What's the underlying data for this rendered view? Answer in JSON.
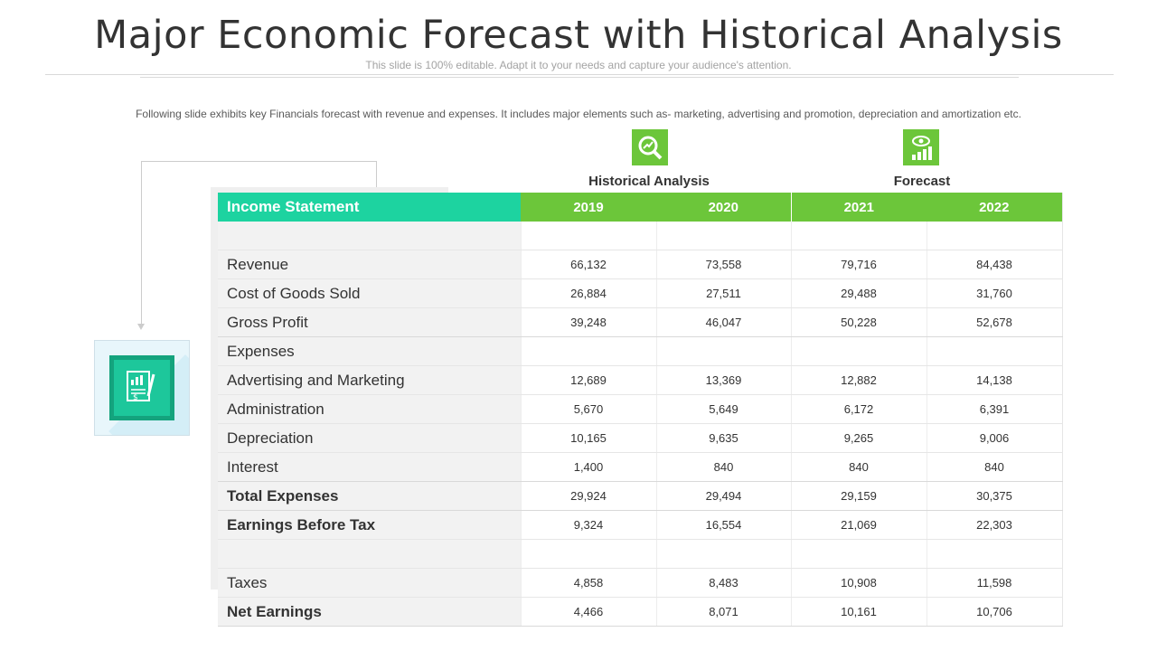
{
  "slide": {
    "title": "Major Economic Forecast with Historical Analysis",
    "subtitle": "This slide is 100% editable. Adapt it to your needs and capture your audience's attention.",
    "description": "Following slide exhibits key Financials forecast with revenue  and expenses. It includes major elements such as- marketing, advertising  and promotion, depreciation and amortization etc."
  },
  "icons": {
    "historical": "magnify-chart-icon",
    "forecast": "eye-chart-icon",
    "document": "financial-document-icon"
  },
  "colors": {
    "label_header": "#1dd3a0",
    "year_header": "#6cc63a",
    "icon_green": "#6cc63a",
    "doc_teal": "#1dc79b"
  },
  "groups": {
    "historical": "Historical Analysis",
    "forecast": "Forecast"
  },
  "table": {
    "header_label": "Income Statement",
    "years": [
      "2019",
      "2020",
      "2021",
      "2022"
    ],
    "rows": [
      {
        "label": "",
        "values": [
          "",
          "",
          "",
          ""
        ]
      },
      {
        "label": "Revenue",
        "values": [
          "66,132",
          "73,558",
          "79,716",
          "84,438"
        ]
      },
      {
        "label": "Cost of Goods Sold",
        "values": [
          "26,884",
          "27,511",
          "29,488",
          "31,760"
        ]
      },
      {
        "label": "Gross Profit",
        "values": [
          "39,248",
          "46,047",
          "50,228",
          "52,678"
        ]
      },
      {
        "label": "Expenses",
        "values": [
          "",
          "",
          "",
          ""
        ]
      },
      {
        "label": "Advertising and Marketing",
        "values": [
          "12,689",
          "13,369",
          "12,882",
          "14,138"
        ]
      },
      {
        "label": "Administration",
        "values": [
          "5,670",
          "5,649",
          "6,172",
          "6,391"
        ]
      },
      {
        "label": "Depreciation",
        "values": [
          "10,165",
          "9,635",
          "9,265",
          "9,006"
        ]
      },
      {
        "label": "Interest",
        "values": [
          "1,400",
          "840",
          "840",
          "840"
        ]
      },
      {
        "label": "Total Expenses",
        "values": [
          "29,924",
          "29,494",
          "29,159",
          "30,375"
        ]
      },
      {
        "label": "Earnings Before Tax",
        "values": [
          "9,324",
          "16,554",
          "21,069",
          "22,303"
        ]
      },
      {
        "label": "",
        "values": [
          "",
          "",
          "",
          ""
        ]
      },
      {
        "label": "Taxes",
        "values": [
          "4,858",
          "8,483",
          "10,908",
          "11,598"
        ]
      },
      {
        "label": "Net Earnings",
        "values": [
          "4,466",
          "8,071",
          "10,161",
          "10,706"
        ]
      }
    ]
  }
}
